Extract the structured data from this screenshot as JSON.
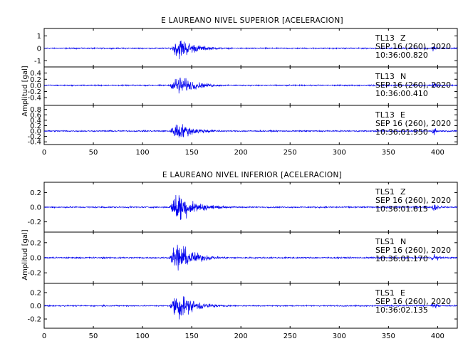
{
  "chart_data": [
    {
      "type": "line",
      "title": "E LAUREANO NIVEL SUPERIOR [ACELERACION]",
      "ylabel": "Amplitud [gal]",
      "xlim": [
        0,
        420
      ],
      "x_ticks": [
        "0",
        "50",
        "100",
        "150",
        "200",
        "250",
        "300",
        "350",
        "400"
      ],
      "series": [
        {
          "name": "TL13 Z",
          "station": "TL13",
          "component": "Z",
          "date": "SEP 16 (260), 2020",
          "start_time": "10:36:00.820",
          "ylim": [
            -1.5,
            1.6
          ],
          "y_ticks": [
            1,
            0,
            -1
          ],
          "y_tick_labels": [
            "1",
            "0",
            "-1"
          ],
          "noise_amplitude": 0.06,
          "events": [
            {
              "onset": 128,
              "peak_time": 137,
              "peak_amplitude": 1.2,
              "decay": 16
            },
            {
              "onset": 393,
              "peak_time": 396,
              "peak_amplitude": 0.35,
              "decay": 4
            }
          ]
        },
        {
          "name": "TL13 N",
          "station": "TL13",
          "component": "N",
          "date": "SEP 16 (260), 2020",
          "start_time": "10:36:00.410",
          "ylim": [
            -0.65,
            0.6
          ],
          "y_ticks": [
            0.4,
            0.2,
            0.0,
            -0.2,
            -0.4
          ],
          "y_tick_labels": [
            "0.4",
            "0.2",
            "0.0",
            "-0.2",
            "-0.4"
          ],
          "noise_amplitude": 0.025,
          "events": [
            {
              "onset": 127,
              "peak_time": 136,
              "peak_amplitude": 0.45,
              "decay": 17
            },
            {
              "onset": 393,
              "peak_time": 396,
              "peak_amplitude": 0.15,
              "decay": 4
            }
          ]
        },
        {
          "name": "TL13 E",
          "station": "TL13",
          "component": "E",
          "date": "SEP 16 (260), 2020",
          "start_time": "10:36:01.950",
          "ylim": [
            -0.5,
            0.95
          ],
          "y_ticks": [
            0.8,
            0.6,
            0.4,
            0.2,
            0.0,
            -0.2,
            -0.4
          ],
          "y_tick_labels": [
            "0.8",
            "0.6",
            "0.4",
            "0.2",
            "0.0",
            "-0.2",
            "-0.4"
          ],
          "noise_amplitude": 0.03,
          "events": [
            {
              "onset": 127,
              "peak_time": 135,
              "peak_amplitude": 0.45,
              "decay": 18
            },
            {
              "onset": 393,
              "peak_time": 396,
              "peak_amplitude": 0.2,
              "decay": 4
            }
          ]
        }
      ]
    },
    {
      "type": "line",
      "title": "E LAUREANO NIVEL INFERIOR [ACELERACION]",
      "ylabel": "Amplitud [gal]",
      "xlim": [
        0,
        420
      ],
      "x_ticks": [
        "0",
        "50",
        "100",
        "150",
        "200",
        "250",
        "300",
        "350",
        "400"
      ],
      "series": [
        {
          "name": "TLS1 Z",
          "station": "TLS1",
          "component": "Z",
          "date": "SEP 16 (260), 2020",
          "start_time": "10:36:01.615",
          "ylim": [
            -0.34,
            0.34
          ],
          "y_ticks": [
            0.2,
            0.0,
            -0.2
          ],
          "y_tick_labels": [
            "0.2",
            "0.0",
            "-0.2"
          ],
          "noise_amplitude": 0.012,
          "events": [
            {
              "onset": 127,
              "peak_time": 135,
              "peak_amplitude": 0.3,
              "decay": 17
            },
            {
              "onset": 58,
              "peak_time": 60,
              "peak_amplitude": 0.03,
              "decay": 3
            },
            {
              "onset": 393,
              "peak_time": 396,
              "peak_amplitude": 0.12,
              "decay": 4
            }
          ]
        },
        {
          "name": "TLS1 N",
          "station": "TLS1",
          "component": "N",
          "date": "SEP 16 (260), 2020",
          "start_time": "10:36:01.170",
          "ylim": [
            -0.34,
            0.34
          ],
          "y_ticks": [
            0.2,
            0.0,
            -0.2
          ],
          "y_tick_labels": [
            "0.2",
            "0.0",
            "-0.2"
          ],
          "noise_amplitude": 0.012,
          "events": [
            {
              "onset": 127,
              "peak_time": 135,
              "peak_amplitude": 0.28,
              "decay": 17
            },
            {
              "onset": 58,
              "peak_time": 60,
              "peak_amplitude": 0.03,
              "decay": 3
            },
            {
              "onset": 393,
              "peak_time": 396,
              "peak_amplitude": 0.1,
              "decay": 4
            }
          ]
        },
        {
          "name": "TLS1 E",
          "station": "TLS1",
          "component": "E",
          "date": "SEP 16 (260), 2020",
          "start_time": "10:36:02.135",
          "ylim": [
            -0.34,
            0.34
          ],
          "y_ticks": [
            0.2,
            0.0,
            -0.2
          ],
          "y_tick_labels": [
            "0.2",
            "0.0",
            "-0.2"
          ],
          "noise_amplitude": 0.012,
          "events": [
            {
              "onset": 127,
              "peak_time": 135,
              "peak_amplitude": 0.3,
              "decay": 17
            },
            {
              "onset": 58,
              "peak_time": 60,
              "peak_amplitude": 0.03,
              "decay": 3
            },
            {
              "onset": 393,
              "peak_time": 396,
              "peak_amplitude": 0.1,
              "decay": 4
            }
          ]
        }
      ]
    }
  ],
  "colors": {
    "trace": "#0000ee",
    "axes": "#000000",
    "background": "#ffffff"
  }
}
